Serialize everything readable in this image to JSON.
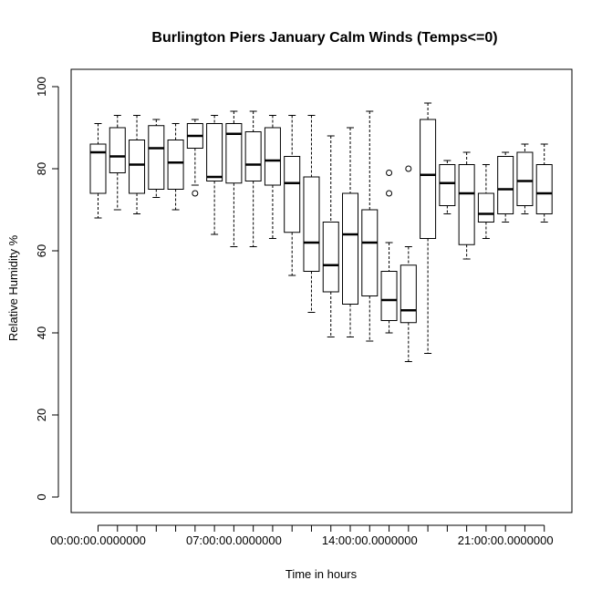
{
  "chart_data": {
    "type": "boxplot",
    "title": "Burlington Piers January Calm Winds (Temps<=0)",
    "xlabel": "Time in hours",
    "ylabel": "Relative Humidity %",
    "ylim": [
      0,
      100
    ],
    "yticks": [
      0,
      20,
      40,
      60,
      80,
      100
    ],
    "x_tick_labels": [
      {
        "index": 0,
        "label": "00:00:00.0000000"
      },
      {
        "index": 7,
        "label": "07:00:00.0000000"
      },
      {
        "index": 14,
        "label": "14:00:00.0000000"
      },
      {
        "index": 21,
        "label": "21:00:00.0000000"
      }
    ],
    "categories": [
      "0",
      "1",
      "2",
      "3",
      "4",
      "5",
      "6",
      "7",
      "8",
      "9",
      "10",
      "11",
      "12",
      "13",
      "14",
      "15",
      "16",
      "17",
      "18",
      "19",
      "20",
      "21",
      "22",
      "23"
    ],
    "boxes": [
      {
        "whisker_low": 68,
        "q1": 74,
        "median": 84,
        "q3": 86,
        "whisker_high": 91,
        "outliers": []
      },
      {
        "whisker_low": 70,
        "q1": 79,
        "median": 83,
        "q3": 90,
        "whisker_high": 93,
        "outliers": []
      },
      {
        "whisker_low": 69,
        "q1": 74,
        "median": 81,
        "q3": 87,
        "whisker_high": 93,
        "outliers": []
      },
      {
        "whisker_low": 73,
        "q1": 75,
        "median": 85,
        "q3": 90.5,
        "whisker_high": 92,
        "outliers": []
      },
      {
        "whisker_low": 70,
        "q1": 75,
        "median": 81.5,
        "q3": 87,
        "whisker_high": 91,
        "outliers": []
      },
      {
        "whisker_low": 76,
        "q1": 85,
        "median": 88,
        "q3": 91,
        "whisker_high": 92,
        "outliers": [
          74
        ]
      },
      {
        "whisker_low": 64,
        "q1": 77,
        "median": 78,
        "q3": 91,
        "whisker_high": 93,
        "outliers": []
      },
      {
        "whisker_low": 61,
        "q1": 76.5,
        "median": 88.5,
        "q3": 91,
        "whisker_high": 94,
        "outliers": []
      },
      {
        "whisker_low": 61,
        "q1": 77,
        "median": 81,
        "q3": 89,
        "whisker_high": 94,
        "outliers": []
      },
      {
        "whisker_low": 63,
        "q1": 76,
        "median": 82,
        "q3": 90,
        "whisker_high": 93,
        "outliers": []
      },
      {
        "whisker_low": 54,
        "q1": 64.5,
        "median": 76.5,
        "q3": 83,
        "whisker_high": 93,
        "outliers": []
      },
      {
        "whisker_low": 45,
        "q1": 55,
        "median": 62,
        "q3": 78,
        "whisker_high": 93,
        "outliers": []
      },
      {
        "whisker_low": 39,
        "q1": 50,
        "median": 56.5,
        "q3": 67,
        "whisker_high": 88,
        "outliers": []
      },
      {
        "whisker_low": 39,
        "q1": 47,
        "median": 64,
        "q3": 74,
        "whisker_high": 90,
        "outliers": []
      },
      {
        "whisker_low": 38,
        "q1": 49,
        "median": 62,
        "q3": 70,
        "whisker_high": 94,
        "outliers": []
      },
      {
        "whisker_low": 40,
        "q1": 43,
        "median": 48,
        "q3": 55,
        "whisker_high": 62,
        "outliers": [
          74,
          79
        ]
      },
      {
        "whisker_low": 33,
        "q1": 42.5,
        "median": 45.5,
        "q3": 56.5,
        "whisker_high": 61,
        "outliers": [
          80
        ]
      },
      {
        "whisker_low": 35,
        "q1": 63,
        "median": 78.5,
        "q3": 92,
        "whisker_high": 96,
        "outliers": []
      },
      {
        "whisker_low": 69,
        "q1": 71,
        "median": 76.5,
        "q3": 81,
        "whisker_high": 82,
        "outliers": []
      },
      {
        "whisker_low": 58,
        "q1": 61.5,
        "median": 74,
        "q3": 81,
        "whisker_high": 84,
        "outliers": []
      },
      {
        "whisker_low": 63,
        "q1": 67,
        "median": 69,
        "q3": 74,
        "whisker_high": 81,
        "outliers": []
      },
      {
        "whisker_low": 67,
        "q1": 69,
        "median": 75,
        "q3": 83,
        "whisker_high": 84,
        "outliers": []
      },
      {
        "whisker_low": 69,
        "q1": 71,
        "median": 77,
        "q3": 84,
        "whisker_high": 86,
        "outliers": []
      },
      {
        "whisker_low": 67,
        "q1": 69,
        "median": 74,
        "q3": 81,
        "whisker_high": 86,
        "outliers": []
      }
    ],
    "grid": false,
    "legend": "none"
  }
}
